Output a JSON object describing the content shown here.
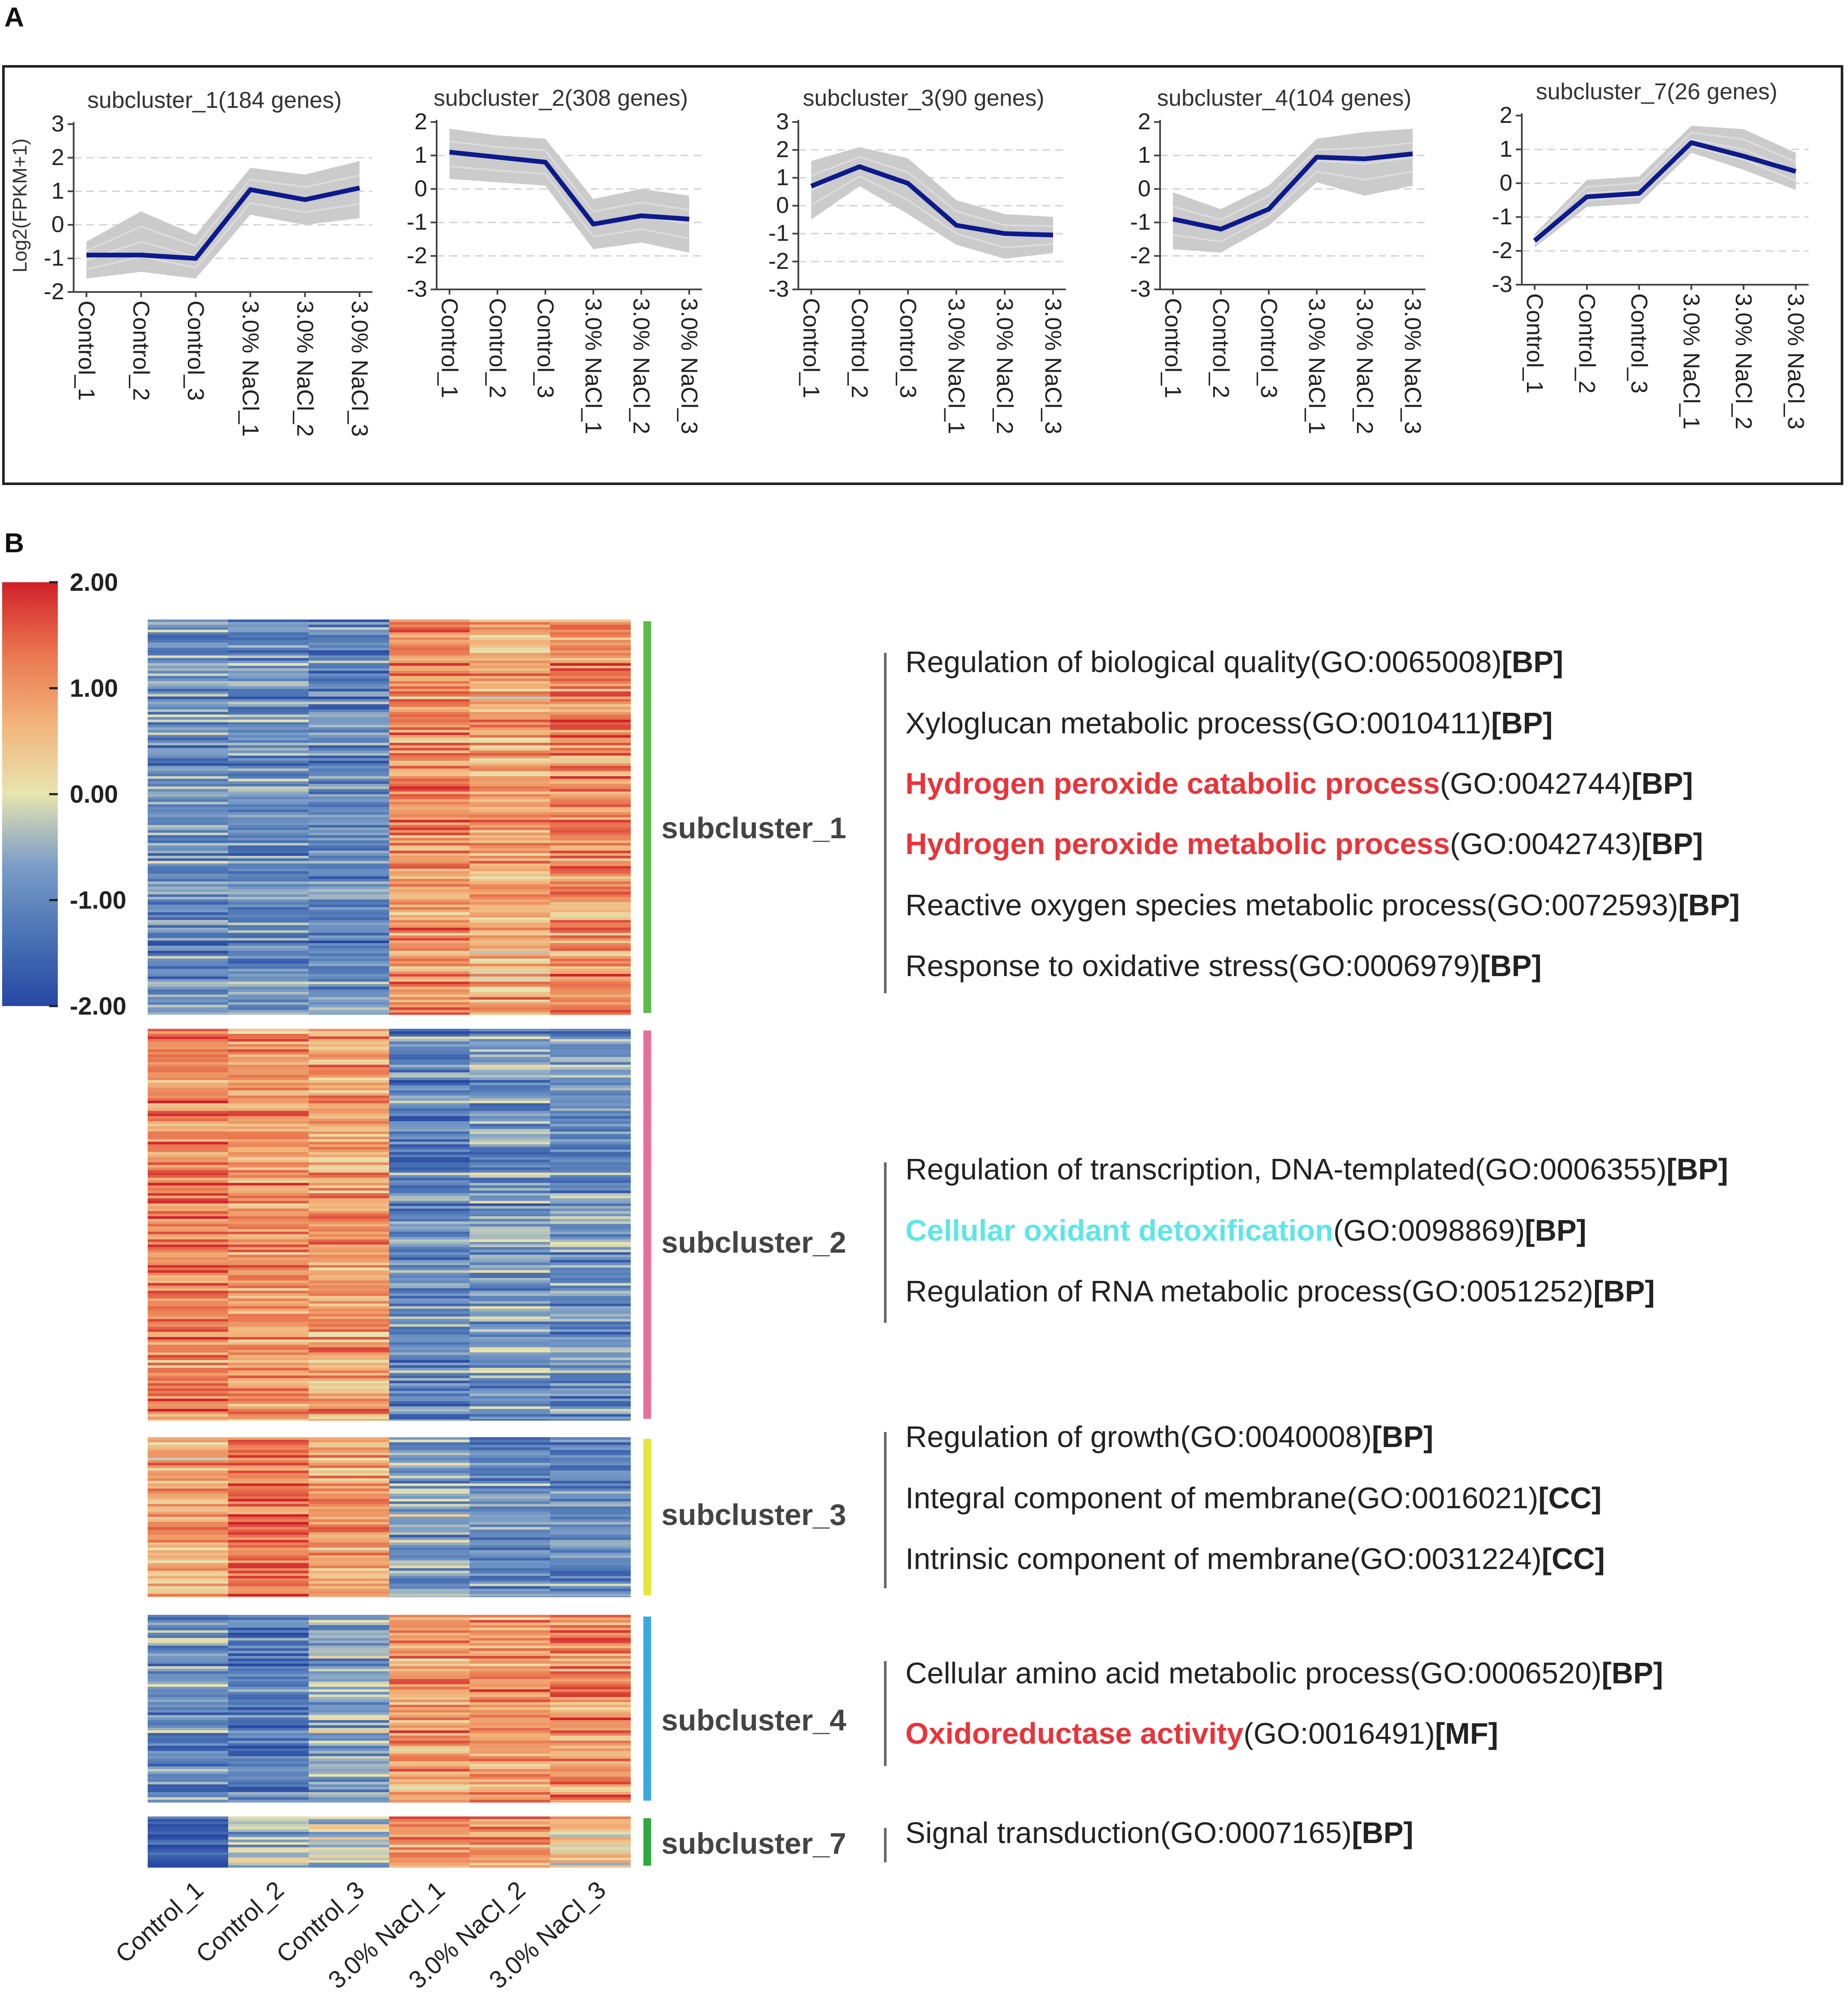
{
  "panel_a": {
    "label": "A",
    "ylabel": "Log2(FPKM+1)",
    "categories": [
      "Control_1",
      "Control_2",
      "Control_3",
      "3.0% NaCl_1",
      "3.0% NaCl_2",
      "3.0% NaCl_3"
    ]
  },
  "panel_b": {
    "label": "B",
    "colorbar": {
      "ticks": [
        "2.00",
        "1.00",
        "0.00",
        "-1.00",
        "-2.00"
      ],
      "min": -2,
      "max": 2,
      "colors": [
        "#2747a4",
        "#4a73b4",
        "#7b9dc7",
        "#e8e4b0",
        "#f2b47b",
        "#e9754e",
        "#d1202a"
      ]
    },
    "columns": [
      "Control_1",
      "Control_2",
      "Control_3",
      "3.0% NaCl_1",
      "3.0% NaCl_2",
      "3.0% NaCl_3"
    ]
  },
  "colors": {
    "line": "#0d1a8c",
    "gene_lines": "#c8c8c8",
    "highlight_red": "#e8343a",
    "highlight_cyan": "#5ee6e6"
  },
  "chart_data": [
    {
      "type": "line",
      "title": "subcluster_1(184 genes)",
      "ylabel": "Log2(FPKM+1)",
      "ylim": [
        -2,
        3
      ],
      "yticks": [
        "3",
        "2",
        "1",
        "0",
        "-1",
        "-2"
      ],
      "categories": [
        "Control_1",
        "Control_2",
        "Control_3",
        "3.0% NaCl_1",
        "3.0% NaCl_2",
        "3.0% NaCl_3"
      ],
      "series": [
        {
          "name": "mean",
          "values": [
            -0.9,
            -0.9,
            -1.0,
            1.05,
            0.75,
            1.1
          ]
        }
      ],
      "band_upper": [
        -0.5,
        0.4,
        -0.3,
        1.7,
        1.5,
        1.9
      ],
      "band_lower": [
        -1.6,
        -1.4,
        -1.6,
        0.3,
        0.0,
        0.2
      ]
    },
    {
      "type": "line",
      "title": "subcluster_2(308 genes)",
      "ylim": [
        -3,
        2
      ],
      "yticks": [
        "2",
        "1",
        "0",
        "-1",
        "-2",
        "-3"
      ],
      "categories": [
        "Control_1",
        "Control_2",
        "Control_3",
        "3.0% NaCl_1",
        "3.0% NaCl_2",
        "3.0% NaCl_3"
      ],
      "series": [
        {
          "name": "mean",
          "values": [
            1.1,
            0.95,
            0.8,
            -1.05,
            -0.8,
            -0.9
          ]
        }
      ],
      "band_upper": [
        1.8,
        1.6,
        1.5,
        -0.3,
        0.0,
        -0.2
      ],
      "band_lower": [
        0.3,
        0.2,
        0.1,
        -1.8,
        -1.6,
        -1.9
      ]
    },
    {
      "type": "line",
      "title": "subcluster_3(90 genes)",
      "ylim": [
        -3,
        3
      ],
      "yticks": [
        "3",
        "2",
        "1",
        "0",
        "-1",
        "-2",
        "-3"
      ],
      "categories": [
        "Control_1",
        "Control_2",
        "Control_3",
        "3.0% NaCl_1",
        "3.0% NaCl_2",
        "3.0% NaCl_3"
      ],
      "series": [
        {
          "name": "mean",
          "values": [
            0.7,
            1.4,
            0.8,
            -0.7,
            -1.0,
            -1.05
          ]
        }
      ],
      "band_upper": [
        1.6,
        2.1,
        1.7,
        0.2,
        -0.3,
        -0.4
      ],
      "band_lower": [
        -0.5,
        0.7,
        -0.3,
        -1.4,
        -1.9,
        -1.7
      ]
    },
    {
      "type": "line",
      "title": "subcluster_4(104 genes)",
      "ylim": [
        -3,
        2
      ],
      "yticks": [
        "2",
        "1",
        "0",
        "-1",
        "-2",
        "-3"
      ],
      "categories": [
        "Control_1",
        "Control_2",
        "Control_3",
        "3.0% NaCl_1",
        "3.0% NaCl_2",
        "3.0% NaCl_3"
      ],
      "series": [
        {
          "name": "mean",
          "values": [
            -0.9,
            -1.2,
            -0.6,
            0.95,
            0.9,
            1.05
          ]
        }
      ],
      "band_upper": [
        -0.1,
        -0.6,
        0.1,
        1.5,
        1.7,
        1.8
      ],
      "band_lower": [
        -1.8,
        -1.9,
        -1.1,
        0.2,
        -0.2,
        0.1
      ]
    },
    {
      "type": "line",
      "title": "subcluster_7(26 genes)",
      "ylim": [
        -3,
        2
      ],
      "yticks": [
        "2",
        "1",
        "0",
        "-1",
        "-2",
        "-3"
      ],
      "categories": [
        "Control_1",
        "Control_2",
        "Control_3",
        "3.0% NaCl_1",
        "3.0% NaCl_2",
        "3.0% NaCl_3"
      ],
      "series": [
        {
          "name": "mean",
          "values": [
            -1.7,
            -0.4,
            -0.3,
            1.2,
            0.8,
            0.35
          ]
        }
      ],
      "band_upper": [
        -1.5,
        0.1,
        0.2,
        1.7,
        1.6,
        0.9
      ],
      "band_lower": [
        -1.9,
        -0.7,
        -0.6,
        0.9,
        0.4,
        -0.2
      ]
    },
    {
      "type": "heatmap",
      "columns": [
        "Control_1",
        "Control_2",
        "Control_3",
        "3.0% NaCl_1",
        "3.0% NaCl_2",
        "3.0% NaCl_3"
      ],
      "value_range": [
        -2,
        2
      ],
      "blocks": [
        {
          "name": "subcluster_1",
          "genes": 184,
          "mean_values": [
            -0.9,
            -0.9,
            -1.0,
            1.05,
            0.75,
            1.1
          ],
          "bar_color": "#5dbb46"
        },
        {
          "name": "subcluster_2",
          "genes": 308,
          "mean_values": [
            1.1,
            0.95,
            0.8,
            -1.05,
            -0.8,
            -0.9
          ],
          "bar_color": "#e8709a"
        },
        {
          "name": "subcluster_3",
          "genes": 90,
          "mean_values": [
            0.7,
            1.4,
            0.8,
            -0.7,
            -1.0,
            -1.05
          ],
          "bar_color": "#e4e63c"
        },
        {
          "name": "subcluster_4",
          "genes": 104,
          "mean_values": [
            -0.9,
            -1.2,
            -0.6,
            0.95,
            0.9,
            1.05
          ],
          "bar_color": "#39a9e0"
        },
        {
          "name": "subcluster_7",
          "genes": 26,
          "mean_values": [
            -1.7,
            -0.4,
            -0.3,
            1.2,
            0.8,
            0.35
          ],
          "bar_color": "#2eaa3f"
        }
      ]
    }
  ],
  "go_terms": [
    {
      "cluster": "subcluster_1",
      "terms": [
        {
          "name": "Regulation of biological quality",
          "id": "(GO:0065008)",
          "tag": "[BP]",
          "color": ""
        },
        {
          "name": "Xyloglucan metabolic process",
          "id": "(GO:0010411)",
          "tag": "[BP]",
          "color": ""
        },
        {
          "name": "Hydrogen peroxide catabolic process",
          "id": "(GO:0042744)",
          "tag": "[BP]",
          "color": "red"
        },
        {
          "name": "Hydrogen peroxide metabolic process",
          "id": "(GO:0042743)",
          "tag": "[BP]",
          "color": "red"
        },
        {
          "name": "Reactive oxygen species metabolic process",
          "id": "(GO:0072593)",
          "tag": "[BP]",
          "color": ""
        },
        {
          "name": "Response to oxidative stress",
          "id": "(GO:0006979)",
          "tag": "[BP]",
          "color": ""
        }
      ]
    },
    {
      "cluster": "subcluster_2",
      "terms": [
        {
          "name": "Regulation of transcription, DNA-templated",
          "id": "(GO:0006355)",
          "tag": "[BP]",
          "color": ""
        },
        {
          "name": "Cellular oxidant detoxification",
          "id": "(GO:0098869)",
          "tag": "[BP]",
          "color": "cyan"
        },
        {
          "name": "Regulation of RNA metabolic process",
          "id": "(GO:0051252)",
          "tag": "[BP]",
          "color": ""
        }
      ]
    },
    {
      "cluster": "subcluster_3",
      "terms": [
        {
          "name": "Regulation of growth",
          "id": "(GO:0040008)",
          "tag": "[BP]",
          "color": ""
        },
        {
          "name": "Integral component of membrane",
          "id": "(GO:0016021)",
          "tag": "[CC]",
          "color": ""
        },
        {
          "name": "Intrinsic component of membrane",
          "id": "(GO:0031224)",
          "tag": "[CC]",
          "color": ""
        }
      ]
    },
    {
      "cluster": "subcluster_4",
      "terms": [
        {
          "name": "Cellular amino acid metabolic process",
          "id": "(GO:0006520)",
          "tag": "[BP]",
          "color": ""
        },
        {
          "name": "Oxidoreductase activity",
          "id": "(GO:0016491)",
          "tag": "[MF]",
          "color": "red"
        }
      ]
    },
    {
      "cluster": "subcluster_7",
      "terms": [
        {
          "name": "Signal transduction",
          "id": "(GO:0007165)",
          "tag": "[BP]",
          "color": ""
        }
      ]
    }
  ]
}
